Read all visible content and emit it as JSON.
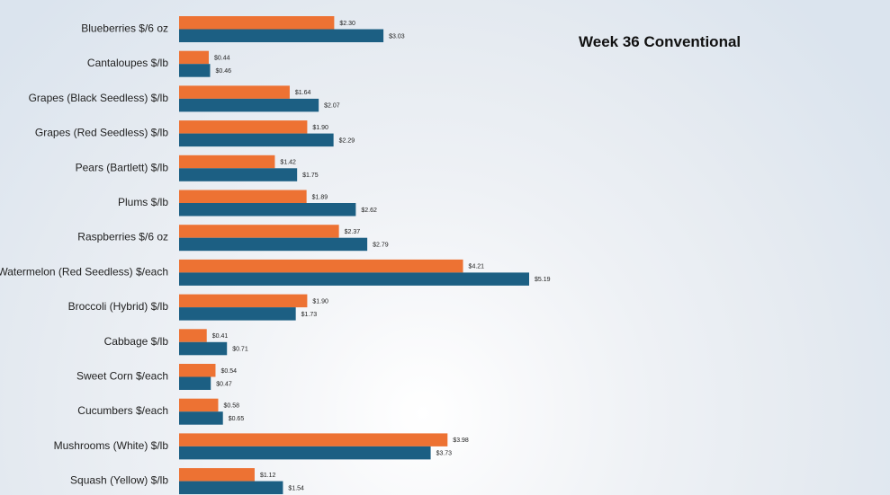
{
  "chart_data": {
    "type": "bar",
    "orientation": "horizontal",
    "title": "Week 36 Conventional",
    "categories": [
      "Blueberries $/6 oz",
      "Cantaloupes $/lb",
      "Grapes (Black Seedless) $/lb",
      "Grapes (Red Seedless) $/lb",
      "Pears (Bartlett) $/lb",
      "Plums $/lb",
      "Raspberries $/6 oz",
      "Watermelon (Red Seedless) $/each",
      "Broccoli (Hybrid) $/lb",
      "Cabbage $/lb",
      "Sweet Corn $/each",
      "Cucumbers $/each",
      "Mushrooms (White) $/lb",
      "Squash (Yellow) $/lb"
    ],
    "series": [
      {
        "color": "#ED7233",
        "values": [
          2.3,
          0.44,
          1.64,
          1.9,
          1.42,
          1.89,
          2.37,
          4.21,
          1.9,
          0.41,
          0.54,
          0.58,
          3.98,
          1.12
        ],
        "labels": [
          "$2.30",
          "$0.44",
          "$1.64",
          "$1.90",
          "$1.42",
          "$1.89",
          "$2.37",
          "$4.21",
          "$1.90",
          "$0.41",
          "$0.54",
          "$0.58",
          "$3.98",
          "$1.12"
        ]
      },
      {
        "color": "#1C5F83",
        "values": [
          3.03,
          0.46,
          2.07,
          2.29,
          1.75,
          2.62,
          2.79,
          5.19,
          1.73,
          0.71,
          0.47,
          0.65,
          3.73,
          1.54
        ],
        "labels": [
          "$3.03",
          "$0.46",
          "$2.07",
          "$2.29",
          "$1.75",
          "$2.62",
          "$2.79",
          "$5.19",
          "$1.73",
          "$0.71",
          "$0.47",
          "$0.65",
          "$3.73",
          "$1.54"
        ]
      }
    ],
    "xlim": [
      0,
      5.2
    ],
    "grid": false,
    "legend": "none"
  }
}
